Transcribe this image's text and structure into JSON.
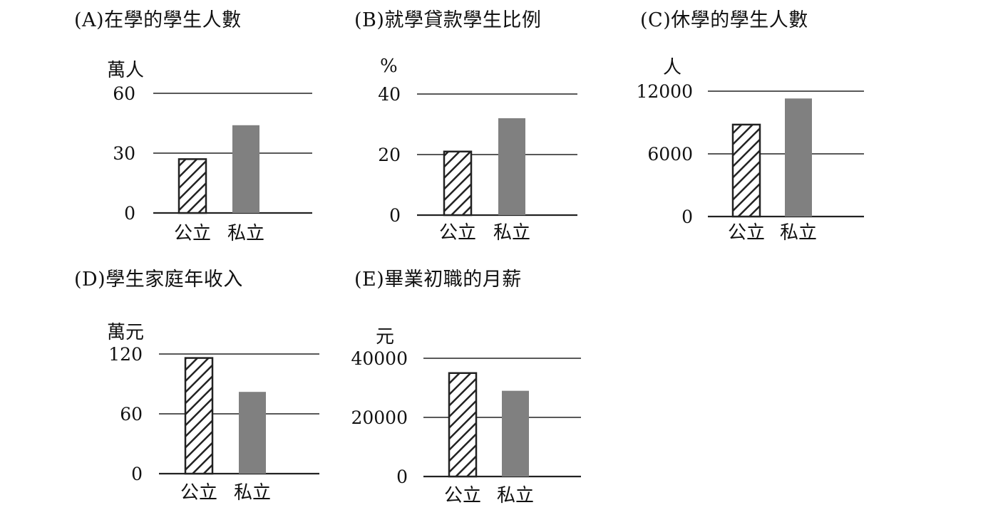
{
  "colors": {
    "public_fill": "hatched",
    "private_fill": "#808080",
    "axis": "#222222"
  },
  "chart_data": [
    {
      "type": "bar",
      "title": "(A)在學的學生人數",
      "ylabel": "萬人",
      "categories": [
        "公立",
        "私立"
      ],
      "values": [
        27,
        44
      ],
      "yticks": [
        "60",
        "30",
        "0"
      ],
      "ylim": [
        0,
        60
      ],
      "grid": true
    },
    {
      "type": "bar",
      "title": "(B)就學貸款學生比例",
      "ylabel": "%",
      "categories": [
        "公立",
        "私立"
      ],
      "values": [
        21,
        32
      ],
      "yticks": [
        "40",
        "20",
        "0"
      ],
      "ylim": [
        0,
        40
      ],
      "grid": true
    },
    {
      "type": "bar",
      "title": "(C)休學的學生人數",
      "ylabel": "人",
      "categories": [
        "公立",
        "私立"
      ],
      "values": [
        8800,
        11300
      ],
      "yticks": [
        "12000",
        "6000",
        "0"
      ],
      "ylim": [
        0,
        12000
      ],
      "grid": true
    },
    {
      "type": "bar",
      "title": "(D)學生家庭年收入",
      "ylabel": "萬元",
      "categories": [
        "公立",
        "私立"
      ],
      "values": [
        116,
        82
      ],
      "yticks": [
        "120",
        "60",
        "0"
      ],
      "ylim": [
        0,
        120
      ],
      "grid": true
    },
    {
      "type": "bar",
      "title": "(E)畢業初職的月薪",
      "ylabel": "元",
      "categories": [
        "公立",
        "私立"
      ],
      "values": [
        35000,
        29000
      ],
      "yticks": [
        "40000",
        "20000",
        "0"
      ],
      "ylim": [
        0,
        40000
      ],
      "grid": true
    }
  ]
}
